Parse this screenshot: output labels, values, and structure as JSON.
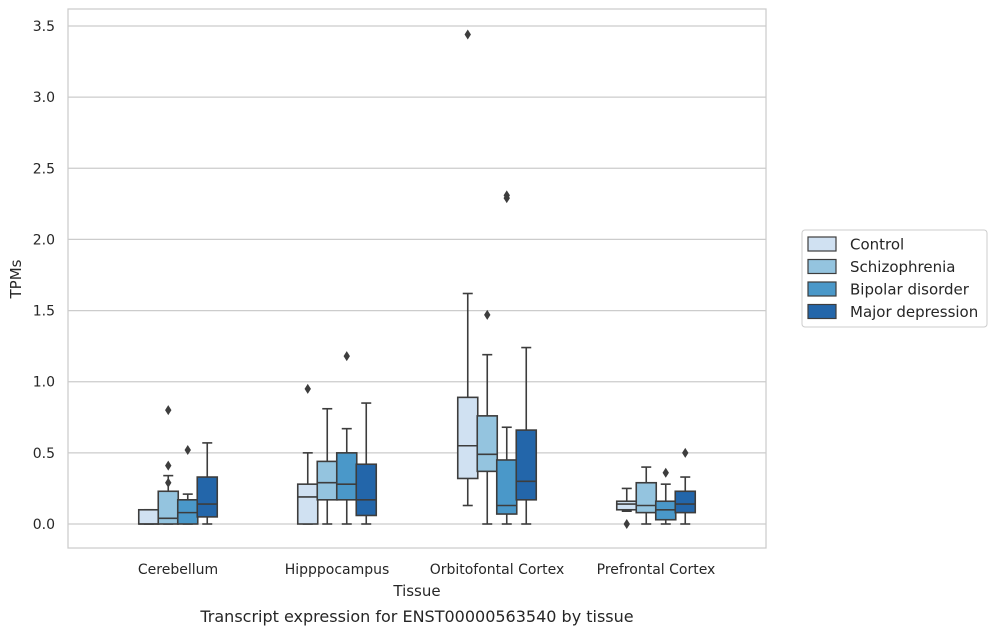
{
  "caption": "Transcript expression for ENST00000563540 by tissue",
  "chart_data": {
    "type": "box",
    "xlabel": "Tissue",
    "ylabel": "TPMs",
    "ylim": [
      -0.16,
      3.62
    ],
    "yticks": [
      "0.0",
      "0.5",
      "1.0",
      "1.5",
      "2.0",
      "2.5",
      "3.0",
      "3.5"
    ],
    "grid": true,
    "legend_position": "right",
    "categories": [
      "Cerebellum",
      "Hipppocampus",
      "Orbitofontal Cortex",
      "Prefrontal Cortex"
    ],
    "series": [
      {
        "name": "Control",
        "color": "#d0e1f2",
        "boxes": [
          {
            "whislo": 0.0,
            "q1": 0.0,
            "med": 0.0,
            "q3": 0.1,
            "whishi": 0.1,
            "fliers": []
          },
          {
            "whislo": 0.0,
            "q1": 0.0,
            "med": 0.19,
            "q3": 0.28,
            "whishi": 0.5,
            "fliers": [
              0.95
            ]
          },
          {
            "whislo": 0.13,
            "q1": 0.32,
            "med": 0.55,
            "q3": 0.89,
            "whishi": 1.62,
            "fliers": [
              3.44
            ]
          },
          {
            "whislo": 0.09,
            "q1": 0.1,
            "med": 0.14,
            "q3": 0.16,
            "whishi": 0.25,
            "fliers": [
              0.0
            ]
          }
        ]
      },
      {
        "name": "Schizophrenia",
        "color": "#94c4df",
        "boxes": [
          {
            "whislo": 0.0,
            "q1": 0.0,
            "med": 0.04,
            "q3": 0.23,
            "whishi": 0.34,
            "fliers": [
              0.29,
              0.41,
              0.8
            ]
          },
          {
            "whislo": 0.0,
            "q1": 0.17,
            "med": 0.29,
            "q3": 0.44,
            "whishi": 0.81,
            "fliers": []
          },
          {
            "whislo": 0.0,
            "q1": 0.37,
            "med": 0.49,
            "q3": 0.76,
            "whishi": 1.19,
            "fliers": [
              1.47
            ]
          },
          {
            "whislo": 0.0,
            "q1": 0.08,
            "med": 0.13,
            "q3": 0.29,
            "whishi": 0.4,
            "fliers": []
          }
        ]
      },
      {
        "name": "Bipolar disorder",
        "color": "#4a98c9",
        "boxes": [
          {
            "whislo": 0.0,
            "q1": 0.0,
            "med": 0.08,
            "q3": 0.17,
            "whishi": 0.21,
            "fliers": [
              0.52
            ]
          },
          {
            "whislo": 0.0,
            "q1": 0.17,
            "med": 0.28,
            "q3": 0.5,
            "whishi": 0.67,
            "fliers": [
              1.18
            ]
          },
          {
            "whislo": 0.0,
            "q1": 0.07,
            "med": 0.13,
            "q3": 0.45,
            "whishi": 0.68,
            "fliers": [
              2.29,
              2.31
            ]
          },
          {
            "whislo": 0.0,
            "q1": 0.03,
            "med": 0.1,
            "q3": 0.16,
            "whishi": 0.28,
            "fliers": [
              0.36
            ]
          }
        ]
      },
      {
        "name": "Major depression",
        "color": "#2366aa",
        "boxes": [
          {
            "whislo": 0.0,
            "q1": 0.05,
            "med": 0.14,
            "q3": 0.33,
            "whishi": 0.57,
            "fliers": []
          },
          {
            "whislo": 0.0,
            "q1": 0.06,
            "med": 0.17,
            "q3": 0.42,
            "whishi": 0.85,
            "fliers": []
          },
          {
            "whislo": 0.0,
            "q1": 0.17,
            "med": 0.3,
            "q3": 0.66,
            "whishi": 1.24,
            "fliers": []
          },
          {
            "whislo": 0.0,
            "q1": 0.08,
            "med": 0.14,
            "q3": 0.23,
            "whishi": 0.33,
            "fliers": [
              0.5
            ]
          }
        ]
      }
    ]
  }
}
